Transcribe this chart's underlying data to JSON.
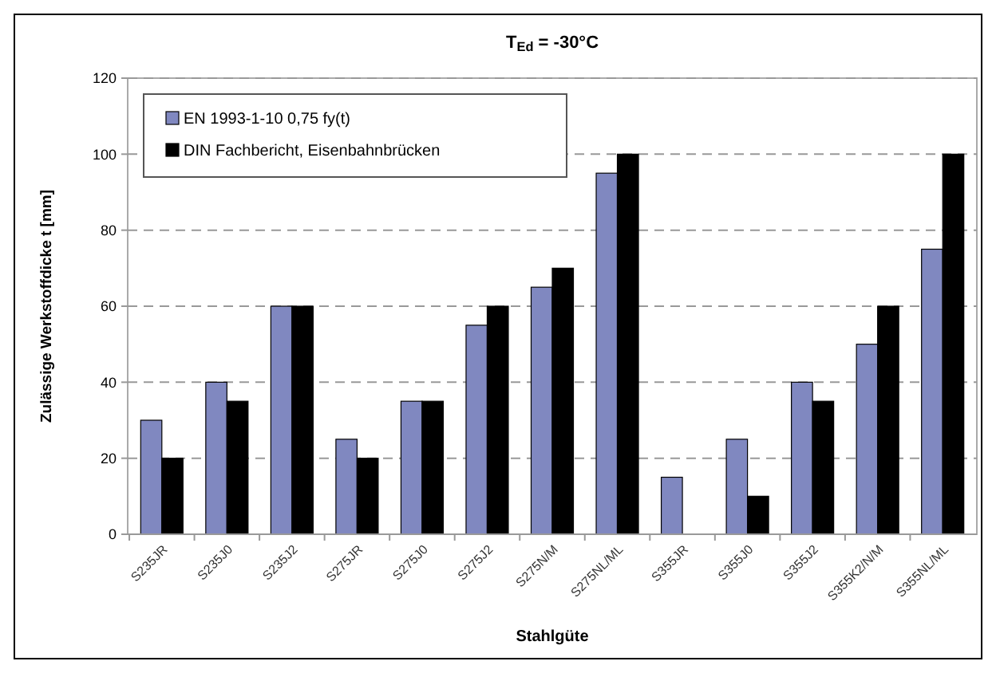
{
  "chart_data": {
    "type": "bar",
    "title": "T$_{Ed}$ = -30°C",
    "xlabel": "Stahlgüte",
    "ylabel": "Zulässige Werkstoffdicke t [mm]",
    "categories": [
      "S235JR",
      "S235J0",
      "S235J2",
      "S275JR",
      "S275J0",
      "S275J2",
      "S275N/M",
      "S275NL/ML",
      "S355JR",
      "S355J0",
      "S355J2",
      "S355K2/N/M",
      "S355NL/ML"
    ],
    "series": [
      {
        "name": "EN 1993-1-10 0,75 fy(t)",
        "color": "#8088c0",
        "values": [
          30,
          40,
          60,
          25,
          35,
          55,
          65,
          95,
          15,
          25,
          40,
          50,
          75
        ]
      },
      {
        "name": "DIN Fachbericht, Eisenbahnbrücken",
        "color": "#000000",
        "values": [
          20,
          35,
          60,
          20,
          35,
          60,
          70,
          100,
          null,
          10,
          35,
          60,
          100
        ]
      }
    ],
    "ylim": [
      0,
      120
    ],
    "yticks": [
      0,
      20,
      40,
      60,
      80,
      100,
      120
    ],
    "grid": "y",
    "legend": "top left"
  }
}
